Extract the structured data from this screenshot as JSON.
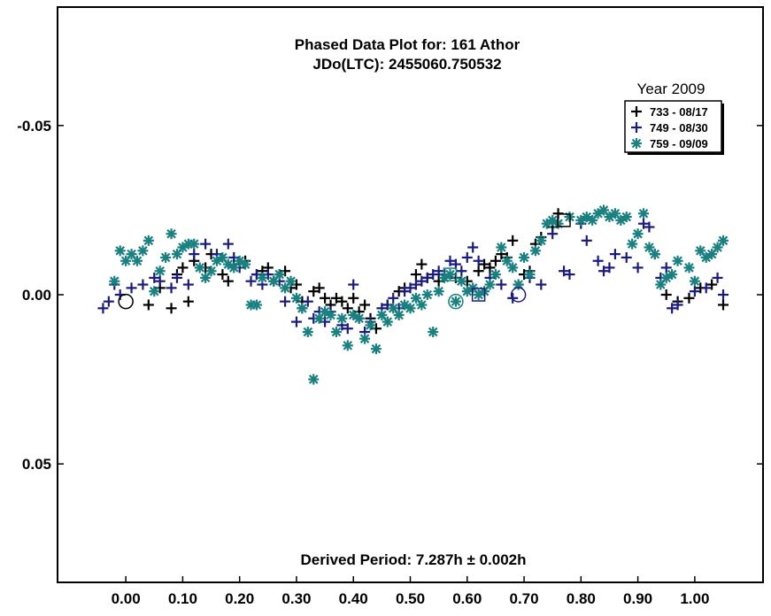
{
  "chart_data": {
    "type": "scatter",
    "title": "Phased Data Plot for: 161 Athor",
    "subtitle": "JDo(LTC): 2455060.750532",
    "footer": "Derived Period: 7.287h  ± 0.002h",
    "legend_title": "Year 2009",
    "legend_position": "top-right",
    "xlim": [
      -0.12,
      1.12
    ],
    "ylim": [
      0.085,
      -0.085
    ],
    "y_inverted": true,
    "grid": false,
    "x_ticks": [
      {
        "value": 0.0,
        "label": "0.00"
      },
      {
        "value": 0.1,
        "label": "0.10"
      },
      {
        "value": 0.2,
        "label": "0.20"
      },
      {
        "value": 0.3,
        "label": "0.30"
      },
      {
        "value": 0.4,
        "label": "0.40"
      },
      {
        "value": 0.5,
        "label": "0.50"
      },
      {
        "value": 0.6,
        "label": "0.60"
      },
      {
        "value": 0.7,
        "label": "0.70"
      },
      {
        "value": 0.8,
        "label": "0.80"
      },
      {
        "value": 0.9,
        "label": "0.90"
      },
      {
        "value": 1.0,
        "label": "1.00"
      }
    ],
    "y_ticks": [
      {
        "value": -0.05,
        "label": "-0.05"
      },
      {
        "value": 0.0,
        "label": "0.00"
      },
      {
        "value": 0.05,
        "label": "0.05"
      }
    ],
    "series": [
      {
        "name": "733 - 08/17",
        "marker": "plus",
        "color": "#000000",
        "points": [
          [
            0.04,
            0.003
          ],
          [
            0.06,
            -0.002
          ],
          [
            0.08,
            0.004
          ],
          [
            0.09,
            -0.006
          ],
          [
            0.1,
            -0.008
          ],
          [
            0.11,
            0.002
          ],
          [
            0.12,
            -0.01
          ],
          [
            0.14,
            -0.008
          ],
          [
            0.15,
            -0.012
          ],
          [
            0.17,
            -0.006
          ],
          [
            0.18,
            -0.004
          ],
          [
            0.19,
            -0.009
          ],
          [
            0.21,
            -0.01
          ],
          [
            0.23,
            -0.006
          ],
          [
            0.24,
            -0.007
          ],
          [
            0.25,
            -0.008
          ],
          [
            0.26,
            -0.004
          ],
          [
            0.27,
            -0.006
          ],
          [
            0.28,
            -0.007
          ],
          [
            0.29,
            -0.002
          ],
          [
            0.3,
            -0.003
          ],
          [
            0.31,
            0.002
          ],
          [
            0.33,
            -0.001
          ],
          [
            0.34,
            -0.002
          ],
          [
            0.35,
            0.001
          ],
          [
            0.36,
            0.003
          ],
          [
            0.37,
            0.001
          ],
          [
            0.38,
            0.002
          ],
          [
            0.39,
            0.004
          ],
          [
            0.4,
            0.001
          ],
          [
            0.41,
            0.005
          ],
          [
            0.42,
            0.003
          ],
          [
            0.43,
            0.007
          ],
          [
            0.44,
            0.01
          ],
          [
            0.46,
            0.003
          ],
          [
            0.48,
            -0.001
          ],
          [
            0.49,
            -0.002
          ],
          [
            0.51,
            -0.006
          ],
          [
            0.52,
            -0.009
          ],
          [
            0.53,
            -0.005
          ],
          [
            0.55,
            -0.004
          ],
          [
            0.56,
            -0.006
          ],
          [
            0.58,
            -0.005
          ],
          [
            0.6,
            -0.004
          ],
          [
            0.62,
            -0.007
          ],
          [
            0.63,
            -0.009
          ],
          [
            0.64,
            -0.008
          ],
          [
            0.65,
            -0.01
          ],
          [
            0.66,
            -0.012
          ],
          [
            0.67,
            -0.011
          ],
          [
            0.68,
            -0.016
          ],
          [
            0.7,
            -0.006
          ],
          [
            0.71,
            -0.007
          ],
          [
            0.72,
            -0.015
          ],
          [
            0.73,
            -0.017
          ],
          [
            0.75,
            -0.02
          ],
          [
            0.76,
            -0.024
          ],
          [
            0.95,
            0.0
          ],
          [
            0.97,
            0.002
          ],
          [
            0.99,
            0.001
          ],
          [
            1.01,
            -0.002
          ],
          [
            1.03,
            -0.003
          ],
          [
            1.05,
            0.003
          ]
        ]
      },
      {
        "name": "749 - 08/30",
        "marker": "plus",
        "color": "#1a1a80",
        "points": [
          [
            -0.04,
            0.004
          ],
          [
            -0.03,
            0.002
          ],
          [
            -0.02,
            -0.003
          ],
          [
            -0.01,
            0.0
          ],
          [
            0.01,
            -0.002
          ],
          [
            0.03,
            -0.003
          ],
          [
            0.05,
            -0.005
          ],
          [
            0.06,
            -0.004
          ],
          [
            0.08,
            -0.002
          ],
          [
            0.09,
            -0.005
          ],
          [
            0.11,
            -0.003
          ],
          [
            0.12,
            -0.012
          ],
          [
            0.14,
            -0.015
          ],
          [
            0.16,
            -0.012
          ],
          [
            0.18,
            -0.015
          ],
          [
            0.19,
            -0.011
          ],
          [
            0.2,
            -0.008
          ],
          [
            0.22,
            -0.004
          ],
          [
            0.23,
            -0.006
          ],
          [
            0.24,
            -0.003
          ],
          [
            0.25,
            -0.006
          ],
          [
            0.27,
            -0.004
          ],
          [
            0.28,
            0.002
          ],
          [
            0.3,
            0.008
          ],
          [
            0.31,
            0.004
          ],
          [
            0.32,
            0.002
          ],
          [
            0.33,
            0.007
          ],
          [
            0.34,
            0.005
          ],
          [
            0.35,
            0.008
          ],
          [
            0.36,
            0.005
          ],
          [
            0.38,
            0.009
          ],
          [
            0.39,
            0.01
          ],
          [
            0.4,
            -0.003
          ],
          [
            0.41,
            0.007
          ],
          [
            0.42,
            0.011
          ],
          [
            0.43,
            0.008
          ],
          [
            0.45,
            0.004
          ],
          [
            0.46,
            0.003
          ],
          [
            0.47,
            0.001
          ],
          [
            0.48,
            0.004
          ],
          [
            0.49,
            -0.001
          ],
          [
            0.5,
            -0.002
          ],
          [
            0.51,
            -0.003
          ],
          [
            0.52,
            -0.004
          ],
          [
            0.53,
            -0.005
          ],
          [
            0.54,
            -0.006
          ],
          [
            0.55,
            -0.007
          ],
          [
            0.56,
            -0.006
          ],
          [
            0.57,
            -0.01
          ],
          [
            0.58,
            -0.009
          ],
          [
            0.59,
            -0.007
          ],
          [
            0.6,
            -0.011
          ],
          [
            0.61,
            -0.014
          ],
          [
            0.62,
            -0.01
          ],
          [
            0.64,
            -0.005
          ],
          [
            0.66,
            -0.003
          ],
          [
            0.68,
            0.001
          ],
          [
            0.69,
            -0.003
          ],
          [
            0.71,
            -0.005
          ],
          [
            0.73,
            -0.003
          ],
          [
            0.75,
            -0.018
          ],
          [
            0.77,
            -0.007
          ],
          [
            0.78,
            -0.006
          ],
          [
            0.8,
            -0.021
          ],
          [
            0.81,
            -0.016
          ],
          [
            0.83,
            -0.01
          ],
          [
            0.84,
            -0.007
          ],
          [
            0.85,
            -0.008
          ],
          [
            0.86,
            -0.012
          ],
          [
            0.88,
            -0.011
          ],
          [
            0.9,
            -0.008
          ],
          [
            0.91,
            -0.021
          ],
          [
            0.92,
            -0.02
          ],
          [
            0.93,
            -0.012
          ],
          [
            0.94,
            -0.005
          ],
          [
            0.95,
            -0.008
          ],
          [
            0.96,
            0.004
          ],
          [
            0.97,
            0.003
          ],
          [
            1.0,
            -0.001
          ],
          [
            1.02,
            -0.002
          ],
          [
            1.04,
            -0.005
          ],
          [
            1.05,
            0.0
          ]
        ]
      },
      {
        "name": "759 - 09/09",
        "marker": "asterisk",
        "color": "#1a8080",
        "points": [
          [
            -0.02,
            -0.004
          ],
          [
            -0.01,
            -0.013
          ],
          [
            0.0,
            -0.01
          ],
          [
            0.01,
            -0.012
          ],
          [
            0.02,
            -0.01
          ],
          [
            0.03,
            -0.013
          ],
          [
            0.04,
            -0.016
          ],
          [
            0.05,
            -0.001
          ],
          [
            0.06,
            -0.007
          ],
          [
            0.07,
            -0.011
          ],
          [
            0.08,
            -0.018
          ],
          [
            0.09,
            -0.012
          ],
          [
            0.1,
            -0.014
          ],
          [
            0.11,
            -0.015
          ],
          [
            0.12,
            -0.015
          ],
          [
            0.13,
            -0.008
          ],
          [
            0.14,
            -0.005
          ],
          [
            0.15,
            -0.007
          ],
          [
            0.16,
            -0.01
          ],
          [
            0.17,
            -0.011
          ],
          [
            0.18,
            -0.009
          ],
          [
            0.19,
            -0.008
          ],
          [
            0.2,
            -0.01
          ],
          [
            0.21,
            -0.009
          ],
          [
            0.22,
            0.003
          ],
          [
            0.23,
            0.003
          ],
          [
            0.24,
            -0.005
          ],
          [
            0.26,
            -0.004
          ],
          [
            0.27,
            -0.006
          ],
          [
            0.28,
            -0.002
          ],
          [
            0.29,
            -0.004
          ],
          [
            0.3,
            0.001
          ],
          [
            0.31,
            0.004
          ],
          [
            0.32,
            0.011
          ],
          [
            0.33,
            0.025
          ],
          [
            0.34,
            0.007
          ],
          [
            0.35,
            0.005
          ],
          [
            0.36,
            0.006
          ],
          [
            0.37,
            0.011
          ],
          [
            0.38,
            0.007
          ],
          [
            0.39,
            0.015
          ],
          [
            0.4,
            0.006
          ],
          [
            0.41,
            0.007
          ],
          [
            0.42,
            0.013
          ],
          [
            0.43,
            0.009
          ],
          [
            0.44,
            0.016
          ],
          [
            0.45,
            0.006
          ],
          [
            0.46,
            0.008
          ],
          [
            0.47,
            0.004
          ],
          [
            0.48,
            0.006
          ],
          [
            0.49,
            0.003
          ],
          [
            0.5,
            0.004
          ],
          [
            0.51,
            0.001
          ],
          [
            0.52,
            0.003
          ],
          [
            0.53,
            0.0
          ],
          [
            0.54,
            0.011
          ],
          [
            0.55,
            -0.001
          ],
          [
            0.56,
            -0.005
          ],
          [
            0.57,
            -0.006
          ],
          [
            0.58,
            0.002
          ],
          [
            0.59,
            -0.004
          ],
          [
            0.6,
            -0.001
          ],
          [
            0.61,
            -0.002
          ],
          [
            0.62,
            0.0
          ],
          [
            0.63,
            -0.001
          ],
          [
            0.64,
            -0.003
          ],
          [
            0.65,
            -0.006
          ],
          [
            0.66,
            -0.014
          ],
          [
            0.67,
            -0.01
          ],
          [
            0.68,
            -0.008
          ],
          [
            0.69,
            -0.003
          ],
          [
            0.7,
            -0.011
          ],
          [
            0.71,
            -0.006
          ],
          [
            0.72,
            -0.013
          ],
          [
            0.73,
            -0.016
          ],
          [
            0.74,
            -0.021
          ],
          [
            0.75,
            -0.022
          ],
          [
            0.76,
            -0.021
          ],
          [
            0.78,
            -0.023
          ],
          [
            0.8,
            -0.022
          ],
          [
            0.81,
            -0.023
          ],
          [
            0.82,
            -0.022
          ],
          [
            0.83,
            -0.024
          ],
          [
            0.84,
            -0.025
          ],
          [
            0.85,
            -0.023
          ],
          [
            0.86,
            -0.024
          ],
          [
            0.87,
            -0.022
          ],
          [
            0.88,
            -0.023
          ],
          [
            0.89,
            -0.015
          ],
          [
            0.9,
            -0.018
          ],
          [
            0.91,
            -0.024
          ],
          [
            0.92,
            -0.014
          ],
          [
            0.93,
            -0.012
          ],
          [
            0.94,
            -0.003
          ],
          [
            0.95,
            -0.005
          ],
          [
            0.96,
            -0.006
          ],
          [
            0.97,
            -0.01
          ],
          [
            0.99,
            -0.008
          ],
          [
            1.0,
            -0.004
          ],
          [
            1.01,
            -0.013
          ],
          [
            1.02,
            -0.011
          ],
          [
            1.03,
            -0.012
          ],
          [
            1.04,
            -0.014
          ],
          [
            1.05,
            -0.016
          ]
        ]
      }
    ],
    "highlights": [
      {
        "shape": "circle",
        "x": 0.0,
        "y": 0.002,
        "color": "#000000"
      },
      {
        "shape": "square",
        "x": 0.77,
        "y": -0.022,
        "color": "#000000"
      },
      {
        "shape": "circle",
        "x": 0.58,
        "y": 0.002,
        "color": "#1a8080"
      },
      {
        "shape": "square",
        "x": 0.57,
        "y": -0.006,
        "color": "#1a8080"
      },
      {
        "shape": "square",
        "x": 0.62,
        "y": 0.0,
        "color": "#1a1a80"
      },
      {
        "shape": "circle",
        "x": 0.69,
        "y": 0.0,
        "color": "#1a1a80"
      }
    ]
  }
}
